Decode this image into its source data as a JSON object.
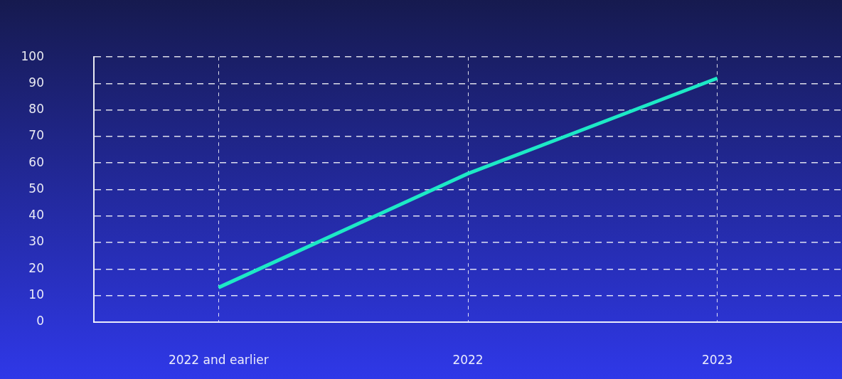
{
  "chart_data": {
    "type": "line",
    "categories": [
      "2022 and earlier",
      "2022",
      "2023"
    ],
    "series": [
      {
        "color": "#1de9c6",
        "values": [
          13,
          56,
          92
        ]
      }
    ],
    "ylim": [
      0,
      100
    ],
    "yticks": [
      0,
      10,
      20,
      30,
      40,
      50,
      60,
      70,
      80,
      90,
      100
    ],
    "grid": true,
    "legend": false,
    "marker": "none",
    "line_style": "solid"
  }
}
